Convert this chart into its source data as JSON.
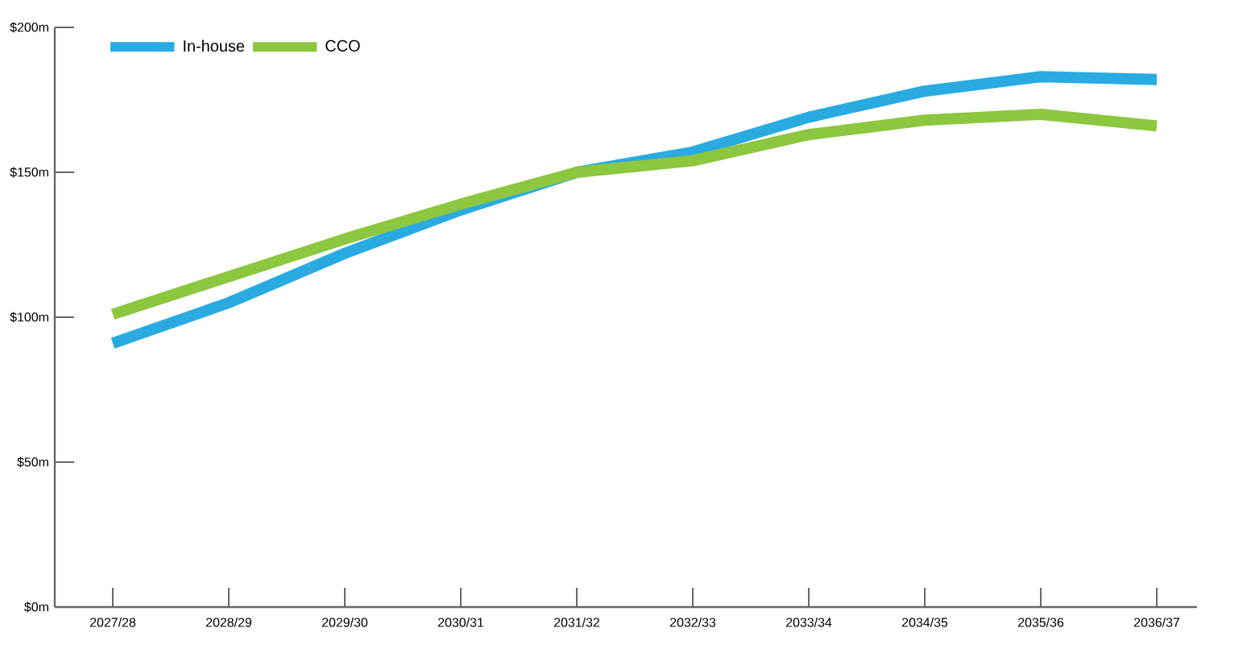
{
  "chart_data": {
    "type": "line",
    "categories": [
      "2027/28",
      "2028/29",
      "2029/30",
      "2030/31",
      "2031/32",
      "2032/33",
      "2033/34",
      "2034/35",
      "2035/36",
      "2036/37"
    ],
    "series": [
      {
        "name": "In-house",
        "color": "#29abe2",
        "values": [
          91,
          105,
          122,
          137,
          150,
          157,
          169,
          178,
          183,
          182
        ]
      },
      {
        "name": "CCO",
        "color": "#8dc63f",
        "values": [
          101,
          114,
          127,
          139,
          150,
          154,
          163,
          168,
          170,
          166
        ]
      }
    ],
    "ylim": [
      0,
      200
    ],
    "yticks": [
      {
        "value": 0,
        "label": "$0m"
      },
      {
        "value": 50,
        "label": "$50m"
      },
      {
        "value": 100,
        "label": "$100m"
      },
      {
        "value": 150,
        "label": "$150m"
      },
      {
        "value": 200,
        "label": "$200m"
      }
    ],
    "legend": "top left",
    "marker": "none",
    "line_style": "solid"
  }
}
